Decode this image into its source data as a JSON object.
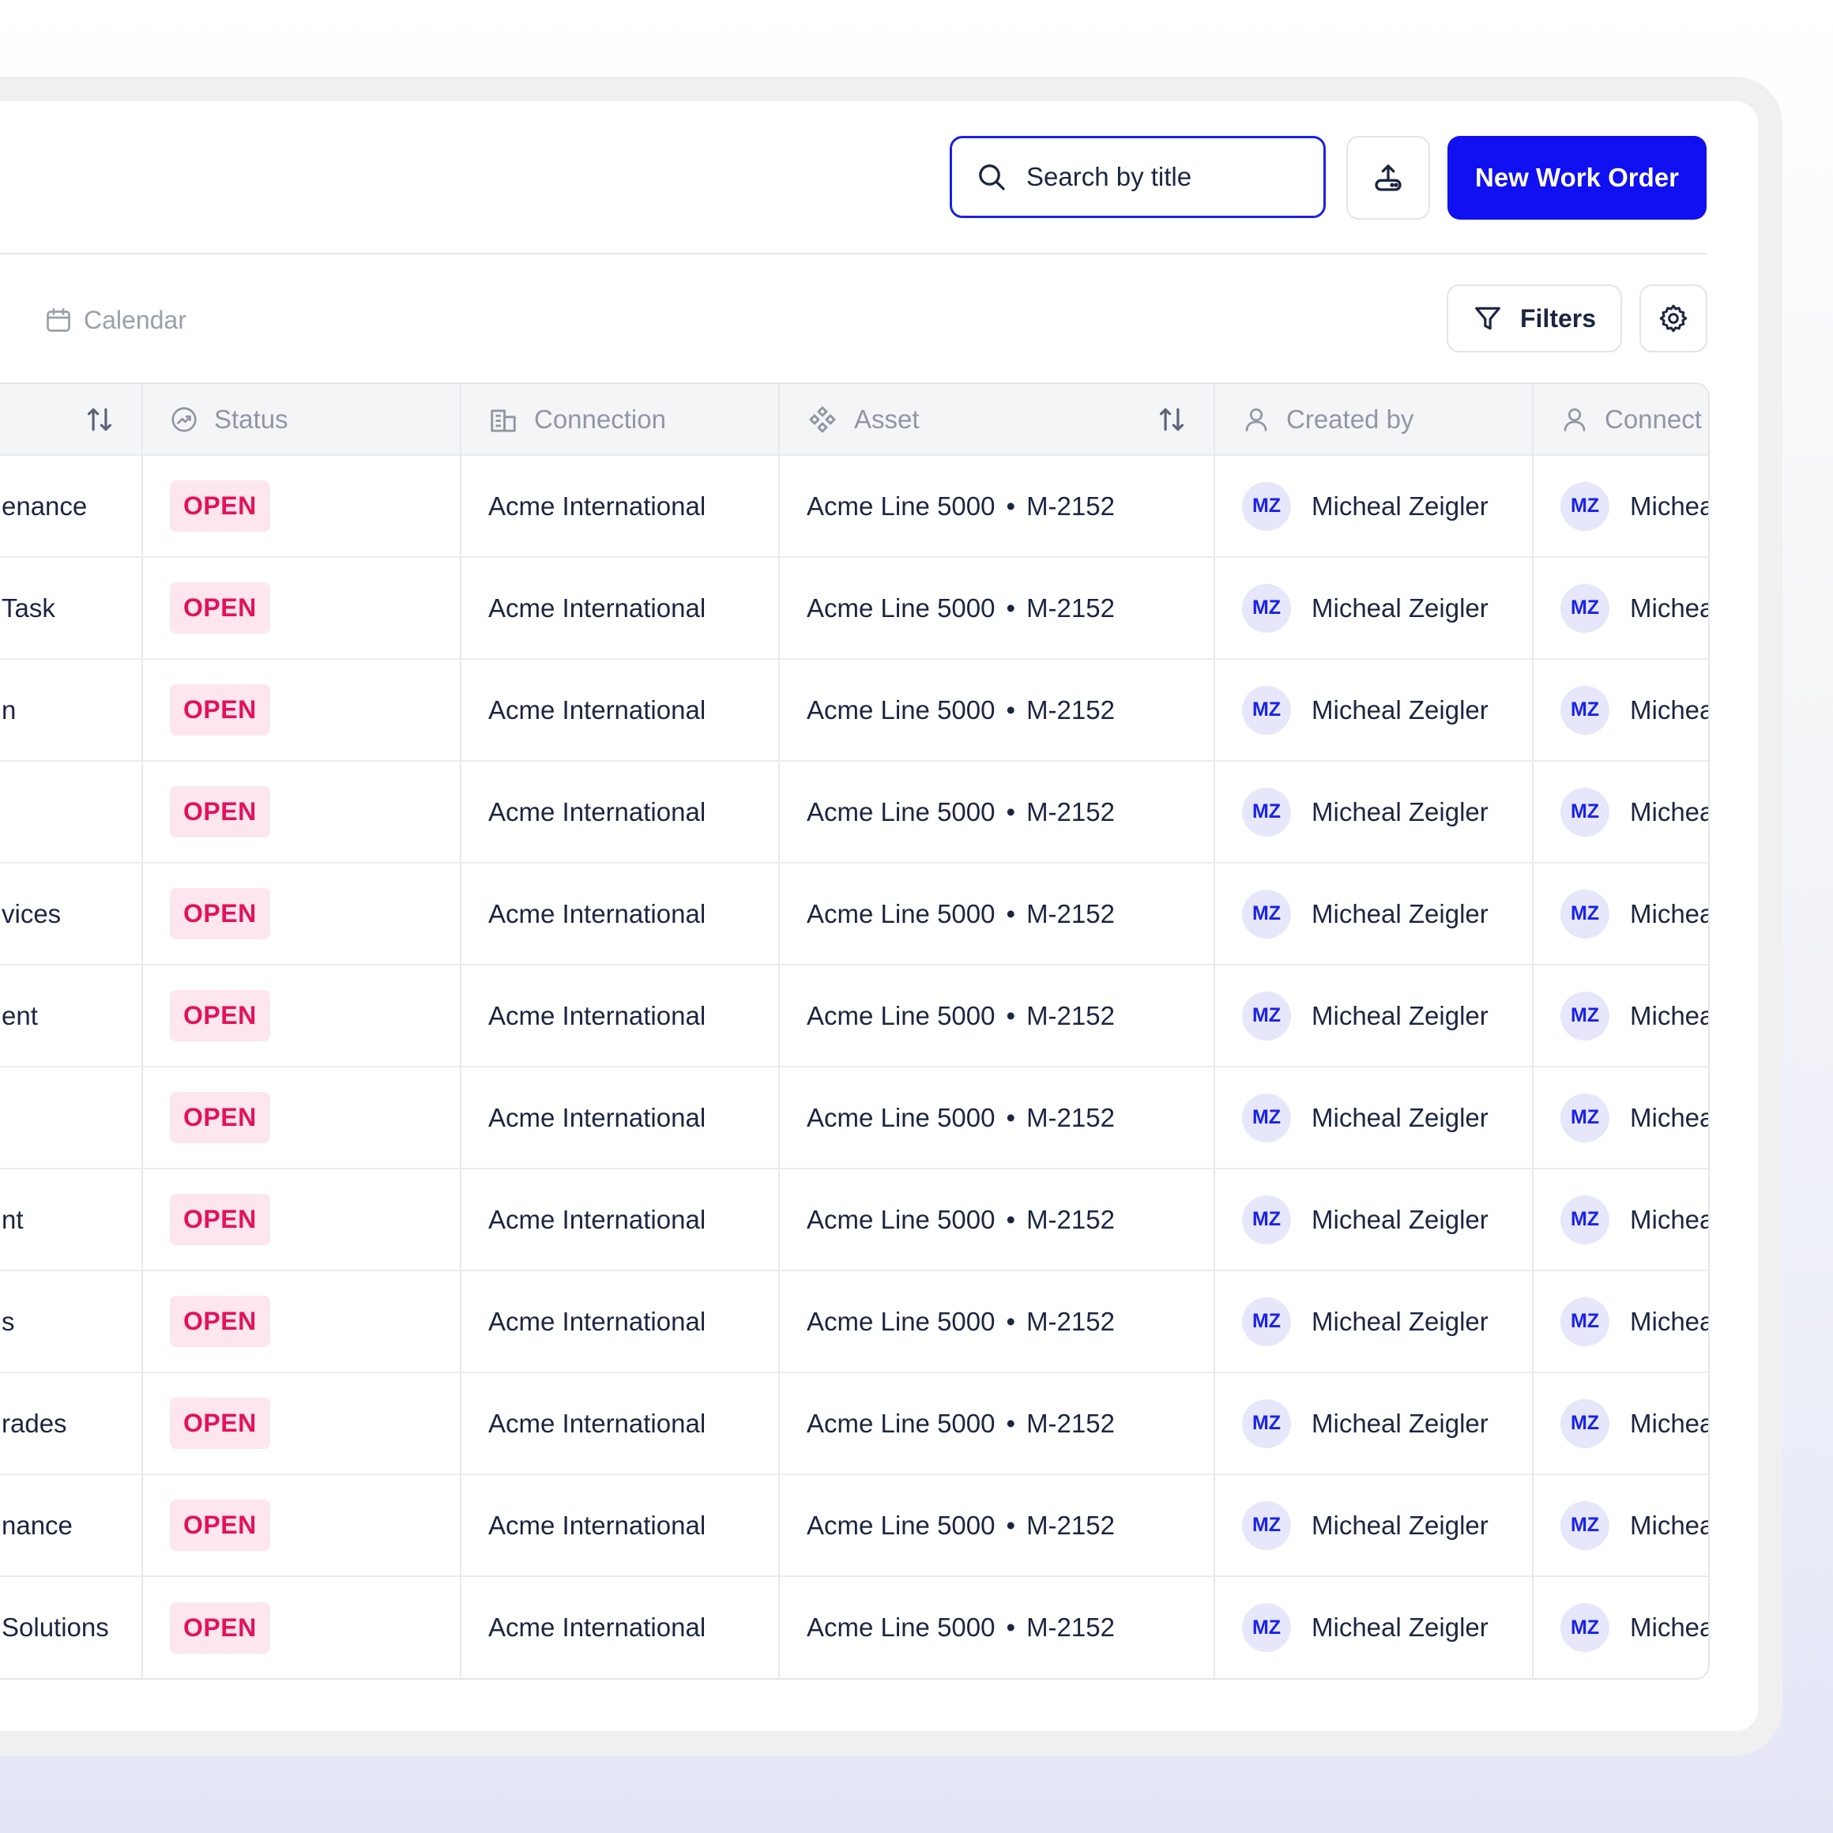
{
  "header": {
    "search_placeholder": "Search by title",
    "new_button": "New Work Order"
  },
  "toolbar": {
    "calendar_label": "Calendar",
    "filters_label": "Filters"
  },
  "table": {
    "columns": {
      "status": "Status",
      "connection": "Connection",
      "asset": "Asset",
      "created_by": "Created by",
      "connect": "Connect"
    },
    "rows": [
      {
        "title": "enance",
        "status": "OPEN",
        "connection": "Acme International",
        "asset": "Acme Line 5000",
        "asset_code": "M-2152",
        "creator_initials": "MZ",
        "creator": "Micheal Zeigler",
        "contact_initials": "MZ",
        "contact": "Michea"
      },
      {
        "title": "Task",
        "status": "OPEN",
        "connection": "Acme International",
        "asset": "Acme Line 5000",
        "asset_code": "M-2152",
        "creator_initials": "MZ",
        "creator": "Micheal Zeigler",
        "contact_initials": "MZ",
        "contact": "Michea"
      },
      {
        "title": "n",
        "status": "OPEN",
        "connection": "Acme International",
        "asset": "Acme Line 5000",
        "asset_code": "M-2152",
        "creator_initials": "MZ",
        "creator": "Micheal Zeigler",
        "contact_initials": "MZ",
        "contact": "Michea"
      },
      {
        "title": "",
        "status": "OPEN",
        "connection": "Acme International",
        "asset": "Acme Line 5000",
        "asset_code": "M-2152",
        "creator_initials": "MZ",
        "creator": "Micheal Zeigler",
        "contact_initials": "MZ",
        "contact": "Michea"
      },
      {
        "title": "vices",
        "status": "OPEN",
        "connection": "Acme International",
        "asset": "Acme Line 5000",
        "asset_code": "M-2152",
        "creator_initials": "MZ",
        "creator": "Micheal Zeigler",
        "contact_initials": "MZ",
        "contact": "Michea"
      },
      {
        "title": "ent",
        "status": "OPEN",
        "connection": "Acme International",
        "asset": "Acme Line 5000",
        "asset_code": "M-2152",
        "creator_initials": "MZ",
        "creator": "Micheal Zeigler",
        "contact_initials": "MZ",
        "contact": "Michea"
      },
      {
        "title": "",
        "status": "OPEN",
        "connection": "Acme International",
        "asset": "Acme Line 5000",
        "asset_code": "M-2152",
        "creator_initials": "MZ",
        "creator": "Micheal Zeigler",
        "contact_initials": "MZ",
        "contact": "Michea"
      },
      {
        "title": "nt",
        "status": "OPEN",
        "connection": "Acme International",
        "asset": "Acme Line 5000",
        "asset_code": "M-2152",
        "creator_initials": "MZ",
        "creator": "Micheal Zeigler",
        "contact_initials": "MZ",
        "contact": "Michea"
      },
      {
        "title": "s",
        "status": "OPEN",
        "connection": "Acme International",
        "asset": "Acme Line 5000",
        "asset_code": "M-2152",
        "creator_initials": "MZ",
        "creator": "Micheal Zeigler",
        "contact_initials": "MZ",
        "contact": "Michea"
      },
      {
        "title": "rades",
        "status": "OPEN",
        "connection": "Acme International",
        "asset": "Acme Line 5000",
        "asset_code": "M-2152",
        "creator_initials": "MZ",
        "creator": "Micheal Zeigler",
        "contact_initials": "MZ",
        "contact": "Michea"
      },
      {
        "title": "nance",
        "status": "OPEN",
        "connection": "Acme International",
        "asset": "Acme Line 5000",
        "asset_code": "M-2152",
        "creator_initials": "MZ",
        "creator": "Micheal Zeigler",
        "contact_initials": "MZ",
        "contact": "Michea"
      },
      {
        "title": "Solutions",
        "status": "OPEN",
        "connection": "Acme International",
        "asset": "Acme Line 5000",
        "asset_code": "M-2152",
        "creator_initials": "MZ",
        "creator": "Micheal Zeigler",
        "contact_initials": "MZ",
        "contact": "Michea"
      }
    ]
  },
  "colors": {
    "primary": "#1010f0",
    "open_badge_bg": "#fde6ee",
    "open_badge_text": "#e3125a",
    "avatar_bg": "#e6e7fb"
  },
  "icons": [
    "search-icon",
    "upload-icon",
    "calendar-icon",
    "filter-icon",
    "gear-icon",
    "sort-icon",
    "status-icon",
    "building-icon",
    "asset-icon",
    "user-icon"
  ]
}
